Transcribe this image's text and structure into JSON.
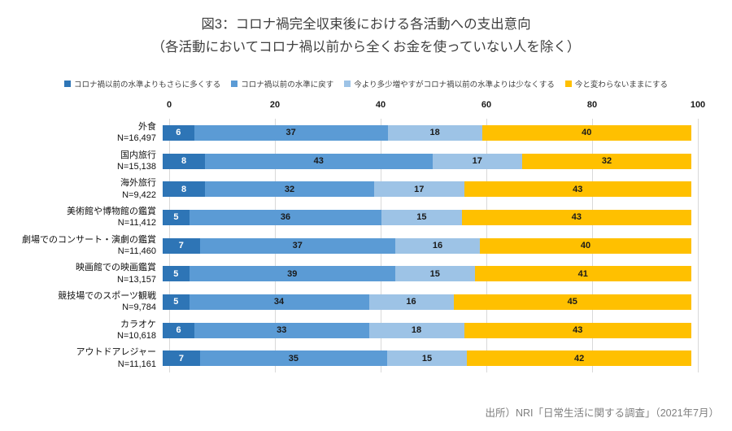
{
  "title": {
    "line1": "図3：コロナ禍完全収束後における各活動への支出意向",
    "line2": "（各活動においてコロナ禍以前から全くお金を使っていない人を除く）"
  },
  "source": "出所）NRI「日常生活に関する調査」（2021年7月）",
  "colors": {
    "grid": "#d9d9d9",
    "series1": "#2E75B6",
    "series2": "#5B9BD5",
    "series3": "#9DC3E6",
    "series4": "#FFC000"
  },
  "chart_data": {
    "type": "bar",
    "orientation": "horizontal-stacked",
    "title": "図3：コロナ禍完全収束後における各活動への支出意向（各活動においてコロナ禍以前から全くお金を使っていない人を除く）",
    "xlim": [
      0,
      100
    ],
    "ticks": [
      0,
      20,
      40,
      60,
      80,
      100
    ],
    "grid": true,
    "legend_position": "top",
    "categories": [
      "外食",
      "国内旅行",
      "海外旅行",
      "美術館や博物館の鑑賞",
      "劇場でのコンサート・演劇の鑑賞",
      "映画館での映画鑑賞",
      "競技場でのスポーツ観戦",
      "カラオケ",
      "アウトドアレジャー"
    ],
    "sample_sizes": [
      "N=16,497",
      "N=15,138",
      "N=9,422",
      "N=11,412",
      "N=11,460",
      "N=13,157",
      "N=9,784",
      "N=10,618",
      "N=11,161"
    ],
    "series": [
      {
        "name": "コロナ禍以前の水準よりもさらに多くする",
        "color": "#2E75B6",
        "values": [
          6,
          8,
          8,
          5,
          7,
          5,
          5,
          6,
          7
        ]
      },
      {
        "name": "コロナ禍以前の水準に戻す",
        "color": "#5B9BD5",
        "values": [
          37,
          43,
          32,
          36,
          37,
          39,
          34,
          33,
          35
        ]
      },
      {
        "name": "今より多少増やすがコロナ禍以前の水準よりは少なくする",
        "color": "#9DC3E6",
        "values": [
          18,
          17,
          17,
          15,
          16,
          15,
          16,
          18,
          15
        ]
      },
      {
        "name": "今と変わらないままにする",
        "color": "#FFC000",
        "values": [
          40,
          32,
          43,
          43,
          40,
          41,
          45,
          43,
          42
        ]
      }
    ]
  }
}
